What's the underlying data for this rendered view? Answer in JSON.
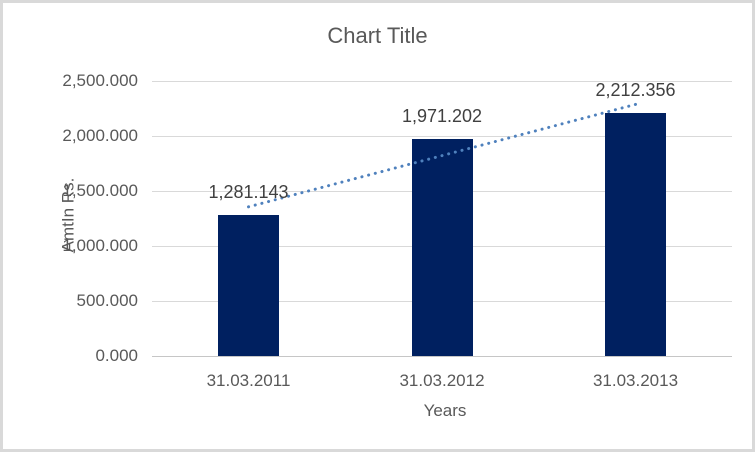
{
  "chart_data": {
    "type": "bar",
    "title": "Chart Title",
    "xlabel": "Years",
    "ylabel": "AmtIn Rs.",
    "categories": [
      "31.03.2011",
      "31.03.2012",
      "31.03.2013"
    ],
    "values": [
      1281.143,
      1971.202,
      2212.356
    ],
    "data_labels": [
      "1,281.143",
      "1,971.202",
      "2,212.356"
    ],
    "y_ticks": [
      {
        "value": 0,
        "label": "0.000"
      },
      {
        "value": 500,
        "label": "500.000"
      },
      {
        "value": 1000,
        "label": "1,000.000"
      },
      {
        "value": 1500,
        "label": "1,500.000"
      },
      {
        "value": 2000,
        "label": "2,000.000"
      },
      {
        "value": 2500,
        "label": "2,500.000"
      }
    ],
    "ylim": [
      0,
      2500
    ],
    "grid": true,
    "legend": "none",
    "trendline": {
      "type": "linear",
      "style": "dotted",
      "start_value": 1356,
      "end_value": 2287
    },
    "colors": {
      "bar": "#002060",
      "trendline": "#4f81bd",
      "axis_text": "#595959",
      "data_label_text": "#404040",
      "gridline": "#d9d9d9",
      "axis_line": "#c6c6c6",
      "chart_border": "#d9d9d9"
    }
  }
}
